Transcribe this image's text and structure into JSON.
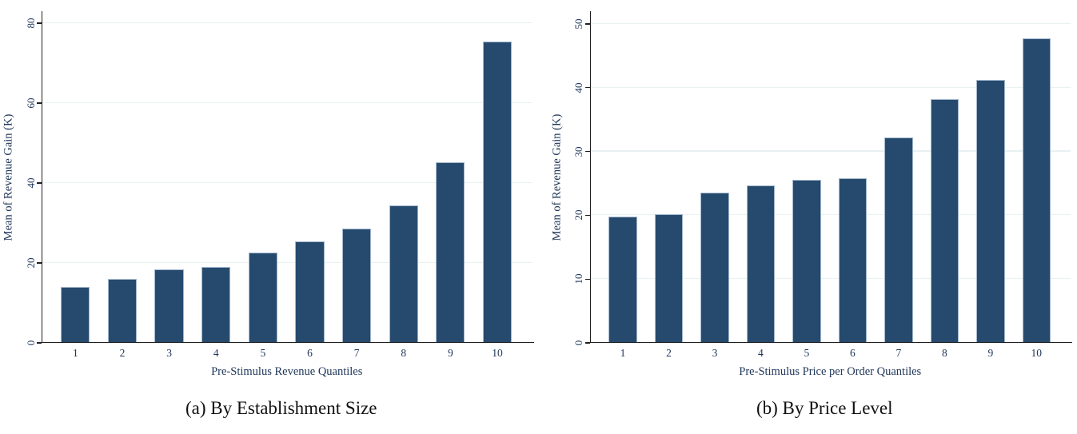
{
  "figure": {
    "background": "#ffffff",
    "bar_color": "#254a6e",
    "bar_edge_color": "#a3b7cd",
    "grid_color": "#e9f1f3",
    "axis_color": "#202020",
    "axis_text_color": "#20375a",
    "caption_text_color": "#111111"
  },
  "chart_data": [
    {
      "type": "bar",
      "panel": "a",
      "title": "(a) By Establishment Size",
      "xlabel": "Pre-Stimulus Revenue Quantiles",
      "ylabel": "Mean of Revenue Gain (K)",
      "categories": [
        "1",
        "2",
        "3",
        "4",
        "5",
        "6",
        "7",
        "8",
        "9",
        "10"
      ],
      "values": [
        14,
        16,
        18.5,
        19,
        22.7,
        25.5,
        28.7,
        34.5,
        45.2,
        75.5
      ],
      "yticks": [
        0,
        20,
        40,
        60,
        80
      ],
      "ylim": [
        0,
        83
      ],
      "grid": true,
      "legend": "none",
      "ytick_label_angle": "vertical"
    },
    {
      "type": "bar",
      "panel": "b",
      "title": "(b) By Price Level",
      "xlabel": "Pre-Stimulus Price per Order Quantiles",
      "ylabel": "Mean of Revenue Gain (K)",
      "categories": [
        "1",
        "2",
        "3",
        "4",
        "5",
        "6",
        "7",
        "8",
        "9",
        "10"
      ],
      "values": [
        19.8,
        20.2,
        23.6,
        24.7,
        25.6,
        25.8,
        32.2,
        38.2,
        41.2,
        47.8
      ],
      "yticks": [
        0,
        10,
        20,
        30,
        40,
        50
      ],
      "ylim": [
        0,
        52
      ],
      "grid": true,
      "legend": "none",
      "ytick_label_angle": "vertical"
    }
  ]
}
